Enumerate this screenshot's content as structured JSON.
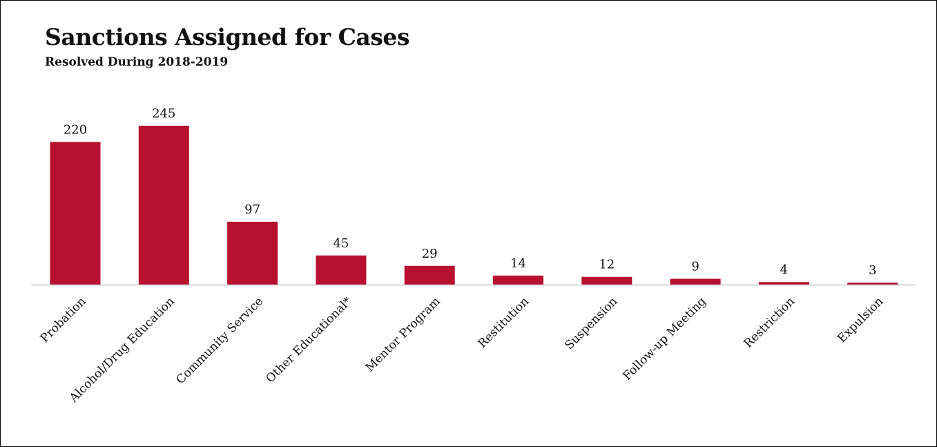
{
  "title": "Sanctions Assigned for Cases",
  "subtitle": "Resolved During 2018-2019",
  "colors": {
    "bar": "#B8102F",
    "axis": "#C8C8C8"
  },
  "chart_data": {
    "type": "bar",
    "title": "Sanctions Assigned for Cases",
    "subtitle": "Resolved During 2018-2019",
    "categories": [
      "Probation",
      "Alcohol/Drug Education",
      "Community Service",
      "Other Educational*",
      "Mentor Program",
      "Restitution",
      "Suspension",
      "Follow-up Meeting",
      "Restriction",
      "Expulsion"
    ],
    "values": [
      220,
      245,
      97,
      45,
      29,
      14,
      12,
      9,
      4,
      3
    ],
    "xlabel": "",
    "ylabel": "",
    "ylim": [
      0,
      260
    ],
    "grid": false,
    "legend": "none",
    "data_labels": true
  }
}
